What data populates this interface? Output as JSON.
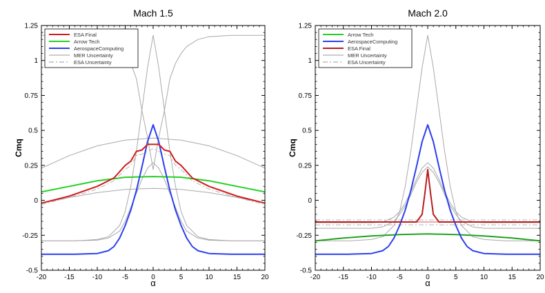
{
  "chart_data": [
    {
      "type": "line",
      "title": "Mach 1.5",
      "xlabel": "α",
      "ylabel": "Cmq",
      "xlim": [
        -20,
        20
      ],
      "ylim": [
        -0.5,
        1.25
      ],
      "xticks": [
        "-20",
        "-15",
        "-10",
        "-5",
        "0",
        "5",
        "10",
        "15",
        "20"
      ],
      "yticks": [
        "-0.5",
        "-0.25",
        "0",
        "0.25",
        "0.5",
        "0.75",
        "1",
        "1.25"
      ],
      "grid": false,
      "legend_position": "top-left",
      "legend": [
        {
          "label": "ESA Final",
          "color": "#d01c1c",
          "dash": "solid"
        },
        {
          "label": "Arrow Tech",
          "color": "#22d022",
          "dash": "solid"
        },
        {
          "label": "AerospaceComputing",
          "color": "#2a3ef0",
          "dash": "solid"
        },
        {
          "label": "MER Uncertainty",
          "color": "#9a9a9a",
          "dash": "solid"
        },
        {
          "label": "ESA Uncertainty",
          "color": "#9a9a9a",
          "dash": "dashdot"
        }
      ],
      "series": [
        {
          "name": "MER Uncertainty",
          "color": "#a8a8a8",
          "dash": "solid",
          "width": 1,
          "x": [
            -20,
            -15,
            -10,
            -5,
            0,
            5,
            10,
            15,
            20
          ],
          "y": [
            0.23,
            0.32,
            0.39,
            0.43,
            0.445,
            0.43,
            0.39,
            0.32,
            0.23
          ]
        },
        {
          "name": "MER Uncertainty",
          "color": "#a8a8a8",
          "dash": "solid",
          "width": 1,
          "x": [
            -20,
            -15,
            -10,
            -5,
            0,
            5,
            10,
            15,
            20
          ],
          "y": [
            -0.02,
            0.02,
            0.055,
            0.078,
            0.085,
            0.078,
            0.055,
            0.02,
            -0.02
          ]
        },
        {
          "name": "MER Uncertainty",
          "color": "#a8a8a8",
          "dash": "solid",
          "width": 1,
          "x": [
            -20,
            -14,
            -10,
            -8,
            -6,
            -5,
            -4,
            -3,
            -2,
            -1,
            0,
            1,
            2,
            3,
            4,
            5,
            6,
            8,
            10,
            14,
            20
          ],
          "y": [
            1.18,
            1.18,
            1.17,
            1.15,
            1.1,
            1.05,
            0.98,
            0.87,
            0.64,
            0.45,
            0.22,
            0.45,
            0.64,
            0.87,
            0.98,
            1.05,
            1.1,
            1.15,
            1.17,
            1.18,
            1.18
          ]
        },
        {
          "name": "MER Uncertainty",
          "color": "#a8a8a8",
          "dash": "solid",
          "width": 1,
          "x": [
            -20,
            -14,
            -10,
            -8,
            -6,
            -5,
            -4,
            -3,
            -2,
            -1,
            0,
            1,
            2,
            3,
            4,
            5,
            6,
            8,
            10,
            14,
            20
          ],
          "y": [
            -0.29,
            -0.29,
            -0.285,
            -0.27,
            -0.22,
            -0.15,
            -0.05,
            0.05,
            0.15,
            0.23,
            0.27,
            0.23,
            0.15,
            0.05,
            -0.05,
            -0.15,
            -0.22,
            -0.27,
            -0.285,
            -0.29,
            -0.29
          ]
        },
        {
          "name": "MER Uncertainty",
          "color": "#a8a8a8",
          "dash": "solid",
          "width": 1,
          "x": [
            -20,
            -14,
            -10,
            -8,
            -6,
            -5,
            -4,
            -3,
            -2,
            -1,
            0,
            1,
            2,
            3,
            4,
            5,
            6,
            8,
            10,
            14,
            20
          ],
          "y": [
            -0.29,
            -0.29,
            -0.28,
            -0.26,
            -0.18,
            -0.08,
            0.1,
            0.35,
            0.65,
            0.95,
            1.18,
            0.95,
            0.65,
            0.35,
            0.1,
            -0.08,
            -0.18,
            -0.26,
            -0.28,
            -0.29,
            -0.29
          ]
        },
        {
          "name": "ESA Uncertainty",
          "color": "#b4b4b4",
          "dash": "dashdot",
          "width": 1,
          "x": [
            -20,
            -15,
            -10,
            -7,
            -5,
            -4,
            -3,
            -2,
            -1,
            0,
            1,
            2,
            3,
            4,
            5,
            7,
            10,
            15,
            20
          ],
          "y": [
            -0.03,
            0.02,
            0.08,
            0.14,
            0.22,
            0.25,
            0.32,
            0.33,
            0.35,
            0.37,
            0.35,
            0.33,
            0.32,
            0.25,
            0.22,
            0.14,
            0.08,
            0.02,
            -0.03
          ]
        },
        {
          "name": "Arrow Tech",
          "color": "#22d022",
          "dash": "solid",
          "width": 2,
          "x": [
            -20,
            -15,
            -10,
            -5,
            0,
            5,
            10,
            15,
            20
          ],
          "y": [
            0.06,
            0.1,
            0.14,
            0.165,
            0.17,
            0.165,
            0.14,
            0.1,
            0.06
          ]
        },
        {
          "name": "AerospaceComputing",
          "color": "#2a3ef0",
          "dash": "solid",
          "width": 2,
          "x": [
            -20,
            -14,
            -10,
            -8,
            -7,
            -6,
            -5,
            -4,
            -3,
            -2,
            -1,
            0,
            1,
            2,
            3,
            4,
            5,
            6,
            7,
            8,
            10,
            14,
            20
          ],
          "y": [
            -0.385,
            -0.385,
            -0.38,
            -0.36,
            -0.33,
            -0.27,
            -0.18,
            -0.07,
            0.07,
            0.24,
            0.42,
            0.54,
            0.42,
            0.24,
            0.07,
            -0.07,
            -0.18,
            -0.27,
            -0.33,
            -0.36,
            -0.38,
            -0.385,
            -0.385
          ]
        },
        {
          "name": "ESA Final",
          "color": "#d01c1c",
          "dash": "solid",
          "width": 2,
          "x": [
            -20,
            -15,
            -10,
            -7,
            -5,
            -4,
            -3,
            -2,
            -1,
            0,
            1,
            2,
            3,
            4,
            5,
            7,
            10,
            15,
            20
          ],
          "y": [
            -0.02,
            0.03,
            0.1,
            0.16,
            0.25,
            0.28,
            0.35,
            0.36,
            0.4,
            0.4,
            0.4,
            0.36,
            0.35,
            0.28,
            0.25,
            0.16,
            0.1,
            0.03,
            -0.02
          ]
        }
      ]
    },
    {
      "type": "line",
      "title": "Mach 2.0",
      "xlabel": "α",
      "ylabel": "Cmq",
      "xlim": [
        -20,
        20
      ],
      "ylim": [
        -0.5,
        1.25
      ],
      "xticks": [
        "-20",
        "-15",
        "-10",
        "-5",
        "0",
        "5",
        "10",
        "15",
        "20"
      ],
      "yticks": [
        "-0.5",
        "-0.25",
        "0",
        "0.25",
        "0.5",
        "0.75",
        "1",
        "1.25"
      ],
      "grid": false,
      "legend_position": "top-left",
      "legend": [
        {
          "label": "Arrow Tech",
          "color": "#22d022",
          "dash": "solid"
        },
        {
          "label": "AerospaceComputing",
          "color": "#2a3ef0",
          "dash": "solid"
        },
        {
          "label": "ESA Final",
          "color": "#b81c1c",
          "dash": "solid"
        },
        {
          "label": "MER Uncertainty",
          "color": "#9a9a9a",
          "dash": "solid"
        },
        {
          "label": "ESA Uncertainty",
          "color": "#9a9a9a",
          "dash": "dashdot"
        }
      ],
      "series": [
        {
          "name": "ESA Uncertainty",
          "color": "#b4b4b4",
          "dash": "dashdot",
          "width": 1,
          "x": [
            -20,
            20
          ],
          "y": [
            -0.14,
            -0.14
          ]
        },
        {
          "name": "ESA Uncertainty",
          "color": "#b4b4b4",
          "dash": "dashdot",
          "width": 1,
          "x": [
            -20,
            20
          ],
          "y": [
            -0.175,
            -0.175
          ]
        },
        {
          "name": "ESA Final (band)",
          "color": "#e88a8a",
          "dash": "solid",
          "width": 1.5,
          "x": [
            -20,
            20
          ],
          "y": [
            -0.155,
            -0.155
          ]
        },
        {
          "name": "MER Uncertainty",
          "color": "#a8a8a8",
          "dash": "solid",
          "width": 1,
          "x": [
            -20,
            -14,
            -10,
            -8,
            -6,
            -5,
            -4,
            -3,
            -2,
            -1,
            0,
            1,
            2,
            3,
            4,
            5,
            6,
            8,
            10,
            14,
            20
          ],
          "y": [
            -0.29,
            -0.29,
            -0.28,
            -0.26,
            -0.18,
            -0.08,
            0.1,
            0.35,
            0.65,
            0.95,
            1.18,
            0.95,
            0.65,
            0.35,
            0.1,
            -0.08,
            -0.18,
            -0.26,
            -0.28,
            -0.29,
            -0.29
          ]
        },
        {
          "name": "MER Uncertainty",
          "color": "#a8a8a8",
          "dash": "solid",
          "width": 1,
          "x": [
            -20,
            -14,
            -10,
            -8,
            -6,
            -5,
            -4,
            -3,
            -2,
            -1,
            0,
            1,
            2,
            3,
            4,
            5,
            6,
            8,
            10,
            14,
            20
          ],
          "y": [
            -0.16,
            -0.16,
            -0.16,
            -0.155,
            -0.12,
            -0.08,
            -0.02,
            0.06,
            0.15,
            0.23,
            0.27,
            0.23,
            0.15,
            0.06,
            -0.02,
            -0.08,
            -0.12,
            -0.155,
            -0.16,
            -0.16,
            -0.16
          ]
        },
        {
          "name": "MER Uncertainty",
          "color": "#a8a8a8",
          "dash": "solid",
          "width": 1,
          "x": [
            -20,
            -14,
            -10,
            -8,
            -6,
            -5,
            -4,
            -3,
            -2,
            -1,
            0,
            1,
            2,
            3,
            4,
            5,
            6,
            8,
            10,
            14,
            20
          ],
          "y": [
            -0.2,
            -0.2,
            -0.2,
            -0.19,
            -0.15,
            -0.1,
            -0.04,
            0.04,
            0.13,
            0.2,
            0.24,
            0.2,
            0.13,
            0.04,
            -0.04,
            -0.1,
            -0.15,
            -0.19,
            -0.2,
            -0.2,
            -0.2
          ]
        },
        {
          "name": "Arrow Tech",
          "color": "#1fa21f",
          "dash": "solid",
          "width": 2,
          "x": [
            -20,
            -15,
            -10,
            -5,
            0,
            5,
            10,
            15,
            20
          ],
          "y": [
            -0.29,
            -0.27,
            -0.255,
            -0.245,
            -0.24,
            -0.245,
            -0.255,
            -0.27,
            -0.29
          ]
        },
        {
          "name": "AerospaceComputing",
          "color": "#2a3ef0",
          "dash": "solid",
          "width": 2,
          "x": [
            -20,
            -14,
            -10,
            -8,
            -7,
            -6,
            -5,
            -4,
            -3,
            -2,
            -1,
            0,
            1,
            2,
            3,
            4,
            5,
            6,
            7,
            8,
            10,
            14,
            20
          ],
          "y": [
            -0.385,
            -0.385,
            -0.38,
            -0.36,
            -0.33,
            -0.27,
            -0.18,
            -0.07,
            0.07,
            0.24,
            0.42,
            0.54,
            0.42,
            0.24,
            0.07,
            -0.07,
            -0.18,
            -0.27,
            -0.33,
            -0.36,
            -0.38,
            -0.385,
            -0.385
          ]
        },
        {
          "name": "ESA Final",
          "color": "#b81c1c",
          "dash": "solid",
          "width": 2,
          "x": [
            -20,
            -2,
            -1,
            -0.5,
            0,
            0.5,
            1,
            2,
            20
          ],
          "y": [
            -0.155,
            -0.155,
            -0.1,
            0.05,
            0.22,
            0.05,
            -0.1,
            -0.155,
            -0.155
          ]
        }
      ]
    }
  ]
}
